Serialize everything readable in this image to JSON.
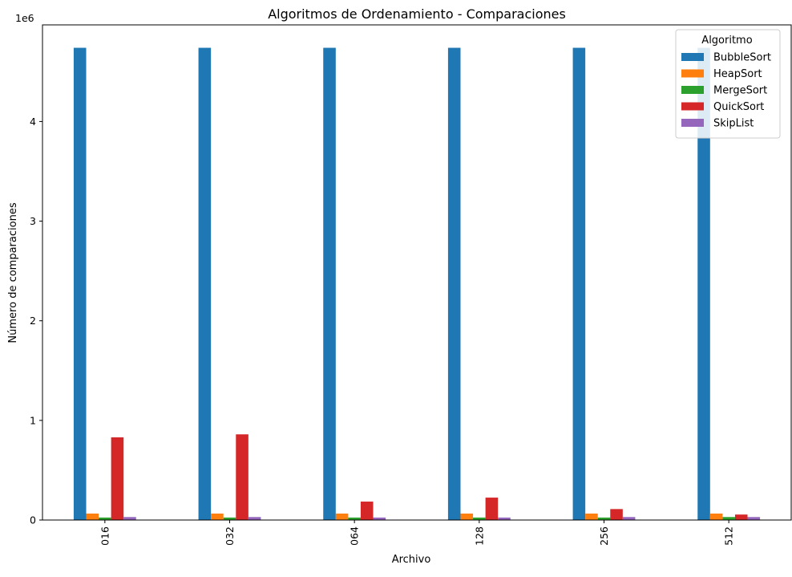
{
  "chart_data": {
    "type": "bar",
    "title": "Algoritmos de Ordenamiento - Comparaciones",
    "xlabel": "Archivo",
    "ylabel": "Número de comparaciones",
    "y_multiplier_label": "1e6",
    "y_scale": 1000000,
    "categories": [
      "016",
      "032",
      "064",
      "128",
      "256",
      "512"
    ],
    "ylim": [
      0,
      4970000
    ],
    "y_ticks": [
      0,
      1000000,
      2000000,
      3000000,
      4000000
    ],
    "y_tick_labels": [
      "0",
      "1",
      "2",
      "3",
      "4"
    ],
    "grid": false,
    "x_tick_rotation": "vertical",
    "legend": {
      "title": "Algoritmo",
      "placement": "top-right"
    },
    "series": [
      {
        "name": "BubbleSort",
        "color": "#1f77b4",
        "values": [
          4740000,
          4740000,
          4740000,
          4740000,
          4740000,
          4740000
        ]
      },
      {
        "name": "HeapSort",
        "color": "#ff7f0e",
        "values": [
          65000,
          65000,
          65000,
          65000,
          65000,
          65000
        ]
      },
      {
        "name": "MergeSort",
        "color": "#2ca02c",
        "values": [
          25000,
          25000,
          25000,
          25000,
          25000,
          30000
        ]
      },
      {
        "name": "QuickSort",
        "color": "#d62728",
        "values": [
          830000,
          860000,
          185000,
          225000,
          110000,
          55000
        ]
      },
      {
        "name": "SkipList",
        "color": "#9467bd",
        "values": [
          30000,
          30000,
          25000,
          25000,
          30000,
          30000
        ]
      }
    ]
  }
}
